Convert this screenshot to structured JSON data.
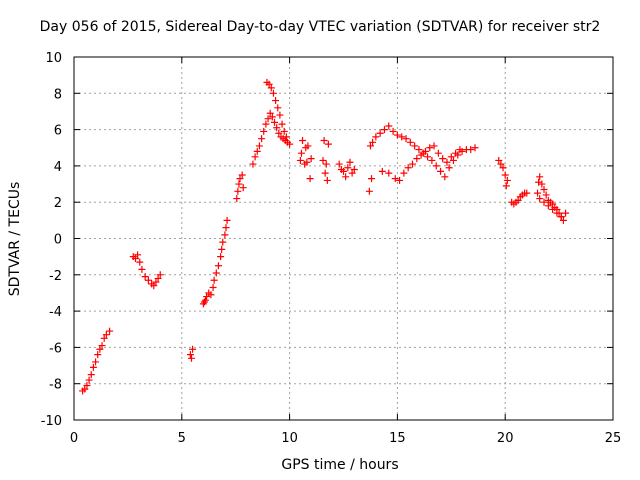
{
  "chart_data": {
    "type": "scatter",
    "title": "Day 056 of 2015, Sidereal Day-to-day VTEC variation (SDTVAR) for receiver str2",
    "xlabel": "GPS time / hours",
    "ylabel": "SDTVAR / TECUs",
    "xlim": [
      0,
      25
    ],
    "ylim": [
      -10,
      10
    ],
    "x_ticks": [
      0,
      5,
      10,
      15,
      20,
      25
    ],
    "y_ticks": [
      -10,
      -8,
      -6,
      -4,
      -2,
      0,
      2,
      4,
      6,
      8,
      10
    ],
    "grid": true,
    "marker": "+",
    "color": "#ff0000",
    "series": [
      {
        "points": [
          [
            0.4,
            -8.4
          ],
          [
            0.5,
            -8.3
          ],
          [
            0.6,
            -8.1
          ],
          [
            0.7,
            -7.8
          ],
          [
            0.8,
            -7.5
          ],
          [
            0.9,
            -7.1
          ],
          [
            1.0,
            -6.8
          ],
          [
            1.1,
            -6.4
          ],
          [
            1.2,
            -6.1
          ],
          [
            1.3,
            -5.9
          ],
          [
            1.4,
            -5.5
          ],
          [
            1.5,
            -5.3
          ],
          [
            1.65,
            -5.1
          ],
          [
            2.75,
            -1.0
          ],
          [
            2.85,
            -1.1
          ],
          [
            2.95,
            -0.9
          ],
          [
            3.05,
            -1.3
          ],
          [
            3.15,
            -1.7
          ],
          [
            3.3,
            -2.1
          ],
          [
            3.45,
            -2.3
          ],
          [
            3.6,
            -2.5
          ],
          [
            3.7,
            -2.6
          ],
          [
            3.8,
            -2.4
          ],
          [
            3.9,
            -2.2
          ],
          [
            4.0,
            -2.0
          ],
          [
            5.4,
            -6.4
          ],
          [
            5.5,
            -6.1
          ],
          [
            5.45,
            -6.6
          ],
          [
            6.0,
            -3.6
          ],
          [
            6.05,
            -3.5
          ],
          [
            6.1,
            -3.4
          ],
          [
            6.15,
            -3.2
          ],
          [
            6.25,
            -3.0
          ],
          [
            6.35,
            -3.1
          ],
          [
            6.45,
            -2.7
          ],
          [
            6.5,
            -2.3
          ],
          [
            6.6,
            -1.9
          ],
          [
            6.7,
            -1.5
          ],
          [
            6.8,
            -1.0
          ],
          [
            6.85,
            -0.6
          ],
          [
            6.9,
            -0.2
          ],
          [
            7.0,
            0.2
          ],
          [
            7.05,
            0.6
          ],
          [
            7.1,
            1.0
          ],
          [
            7.55,
            2.2
          ],
          [
            7.6,
            2.6
          ],
          [
            7.65,
            3.0
          ],
          [
            7.7,
            3.3
          ],
          [
            7.8,
            3.5
          ],
          [
            7.85,
            2.8
          ],
          [
            8.3,
            4.1
          ],
          [
            8.4,
            4.5
          ],
          [
            8.5,
            4.8
          ],
          [
            8.6,
            5.1
          ],
          [
            8.7,
            5.5
          ],
          [
            8.8,
            5.9
          ],
          [
            8.9,
            6.3
          ],
          [
            9.0,
            6.6
          ],
          [
            9.1,
            6.9
          ],
          [
            9.2,
            6.7
          ],
          [
            9.3,
            6.4
          ],
          [
            9.4,
            6.1
          ],
          [
            9.5,
            5.8
          ],
          [
            9.6,
            5.6
          ],
          [
            9.7,
            5.5
          ],
          [
            9.8,
            5.4
          ],
          [
            9.9,
            5.3
          ],
          [
            10.0,
            5.2
          ],
          [
            8.95,
            8.6
          ],
          [
            9.05,
            8.5
          ],
          [
            9.15,
            8.3
          ],
          [
            9.25,
            8.0
          ],
          [
            9.35,
            7.6
          ],
          [
            9.45,
            7.2
          ],
          [
            9.55,
            6.8
          ],
          [
            9.65,
            6.3
          ],
          [
            9.75,
            5.9
          ],
          [
            9.85,
            5.6
          ],
          [
            10.5,
            4.3
          ],
          [
            10.55,
            4.7
          ],
          [
            10.6,
            5.4
          ],
          [
            10.7,
            4.1
          ],
          [
            10.75,
            5.0
          ],
          [
            10.8,
            4.2
          ],
          [
            10.85,
            5.1
          ],
          [
            10.95,
            3.3
          ],
          [
            11.0,
            4.4
          ],
          [
            11.55,
            4.3
          ],
          [
            11.6,
            5.4
          ],
          [
            11.65,
            3.6
          ],
          [
            11.7,
            4.1
          ],
          [
            11.75,
            3.2
          ],
          [
            11.8,
            5.2
          ],
          [
            12.3,
            4.1
          ],
          [
            12.4,
            3.8
          ],
          [
            12.5,
            3.7
          ],
          [
            12.6,
            3.4
          ],
          [
            12.7,
            3.9
          ],
          [
            12.8,
            4.2
          ],
          [
            12.9,
            3.6
          ],
          [
            13.0,
            3.8
          ],
          [
            13.7,
            2.6
          ],
          [
            13.8,
            3.3
          ],
          [
            13.75,
            5.1
          ],
          [
            13.85,
            5.3
          ],
          [
            14.0,
            5.6
          ],
          [
            14.2,
            5.8
          ],
          [
            14.4,
            6.0
          ],
          [
            14.6,
            6.2
          ],
          [
            14.8,
            5.9
          ],
          [
            15.0,
            5.7
          ],
          [
            15.2,
            5.6
          ],
          [
            15.4,
            5.5
          ],
          [
            15.6,
            5.3
          ],
          [
            15.8,
            5.1
          ],
          [
            16.0,
            4.9
          ],
          [
            16.2,
            4.7
          ],
          [
            16.4,
            4.5
          ],
          [
            16.6,
            4.3
          ],
          [
            16.8,
            4.0
          ],
          [
            17.0,
            3.7
          ],
          [
            17.2,
            3.4
          ],
          [
            17.4,
            3.9
          ],
          [
            17.6,
            4.3
          ],
          [
            17.8,
            4.6
          ],
          [
            18.0,
            4.8
          ],
          [
            18.2,
            4.9
          ],
          [
            18.4,
            4.9
          ],
          [
            18.6,
            5.0
          ],
          [
            14.3,
            3.7
          ],
          [
            14.6,
            3.6
          ],
          [
            14.9,
            3.3
          ],
          [
            15.1,
            3.2
          ],
          [
            15.3,
            3.6
          ],
          [
            15.5,
            3.9
          ],
          [
            15.7,
            4.1
          ],
          [
            15.9,
            4.4
          ],
          [
            16.1,
            4.6
          ],
          [
            16.3,
            4.8
          ],
          [
            16.5,
            5.0
          ],
          [
            16.7,
            5.1
          ],
          [
            16.9,
            4.7
          ],
          [
            17.1,
            4.4
          ],
          [
            17.3,
            4.2
          ],
          [
            17.5,
            4.5
          ],
          [
            17.7,
            4.7
          ],
          [
            17.9,
            4.9
          ],
          [
            19.7,
            4.3
          ],
          [
            19.8,
            4.1
          ],
          [
            19.9,
            3.9
          ],
          [
            20.0,
            3.5
          ],
          [
            20.1,
            3.2
          ],
          [
            20.05,
            2.9
          ],
          [
            20.3,
            2.0
          ],
          [
            20.4,
            1.9
          ],
          [
            20.5,
            2.0
          ],
          [
            20.6,
            2.1
          ],
          [
            20.7,
            2.3
          ],
          [
            20.8,
            2.4
          ],
          [
            20.9,
            2.5
          ],
          [
            21.0,
            2.5
          ],
          [
            21.5,
            2.5
          ],
          [
            21.55,
            3.1
          ],
          [
            21.6,
            3.4
          ],
          [
            21.7,
            3.0
          ],
          [
            21.8,
            2.7
          ],
          [
            21.9,
            2.4
          ],
          [
            22.0,
            2.1
          ],
          [
            22.1,
            2.0
          ],
          [
            22.2,
            1.9
          ],
          [
            22.3,
            1.7
          ],
          [
            22.4,
            1.6
          ],
          [
            22.5,
            1.4
          ],
          [
            22.6,
            1.2
          ],
          [
            22.7,
            1.0
          ],
          [
            22.8,
            1.4
          ],
          [
            21.6,
            2.2
          ],
          [
            21.8,
            2.0
          ],
          [
            22.0,
            1.8
          ],
          [
            22.2,
            1.6
          ],
          [
            22.4,
            1.4
          ],
          [
            22.6,
            1.2
          ]
        ]
      }
    ]
  }
}
